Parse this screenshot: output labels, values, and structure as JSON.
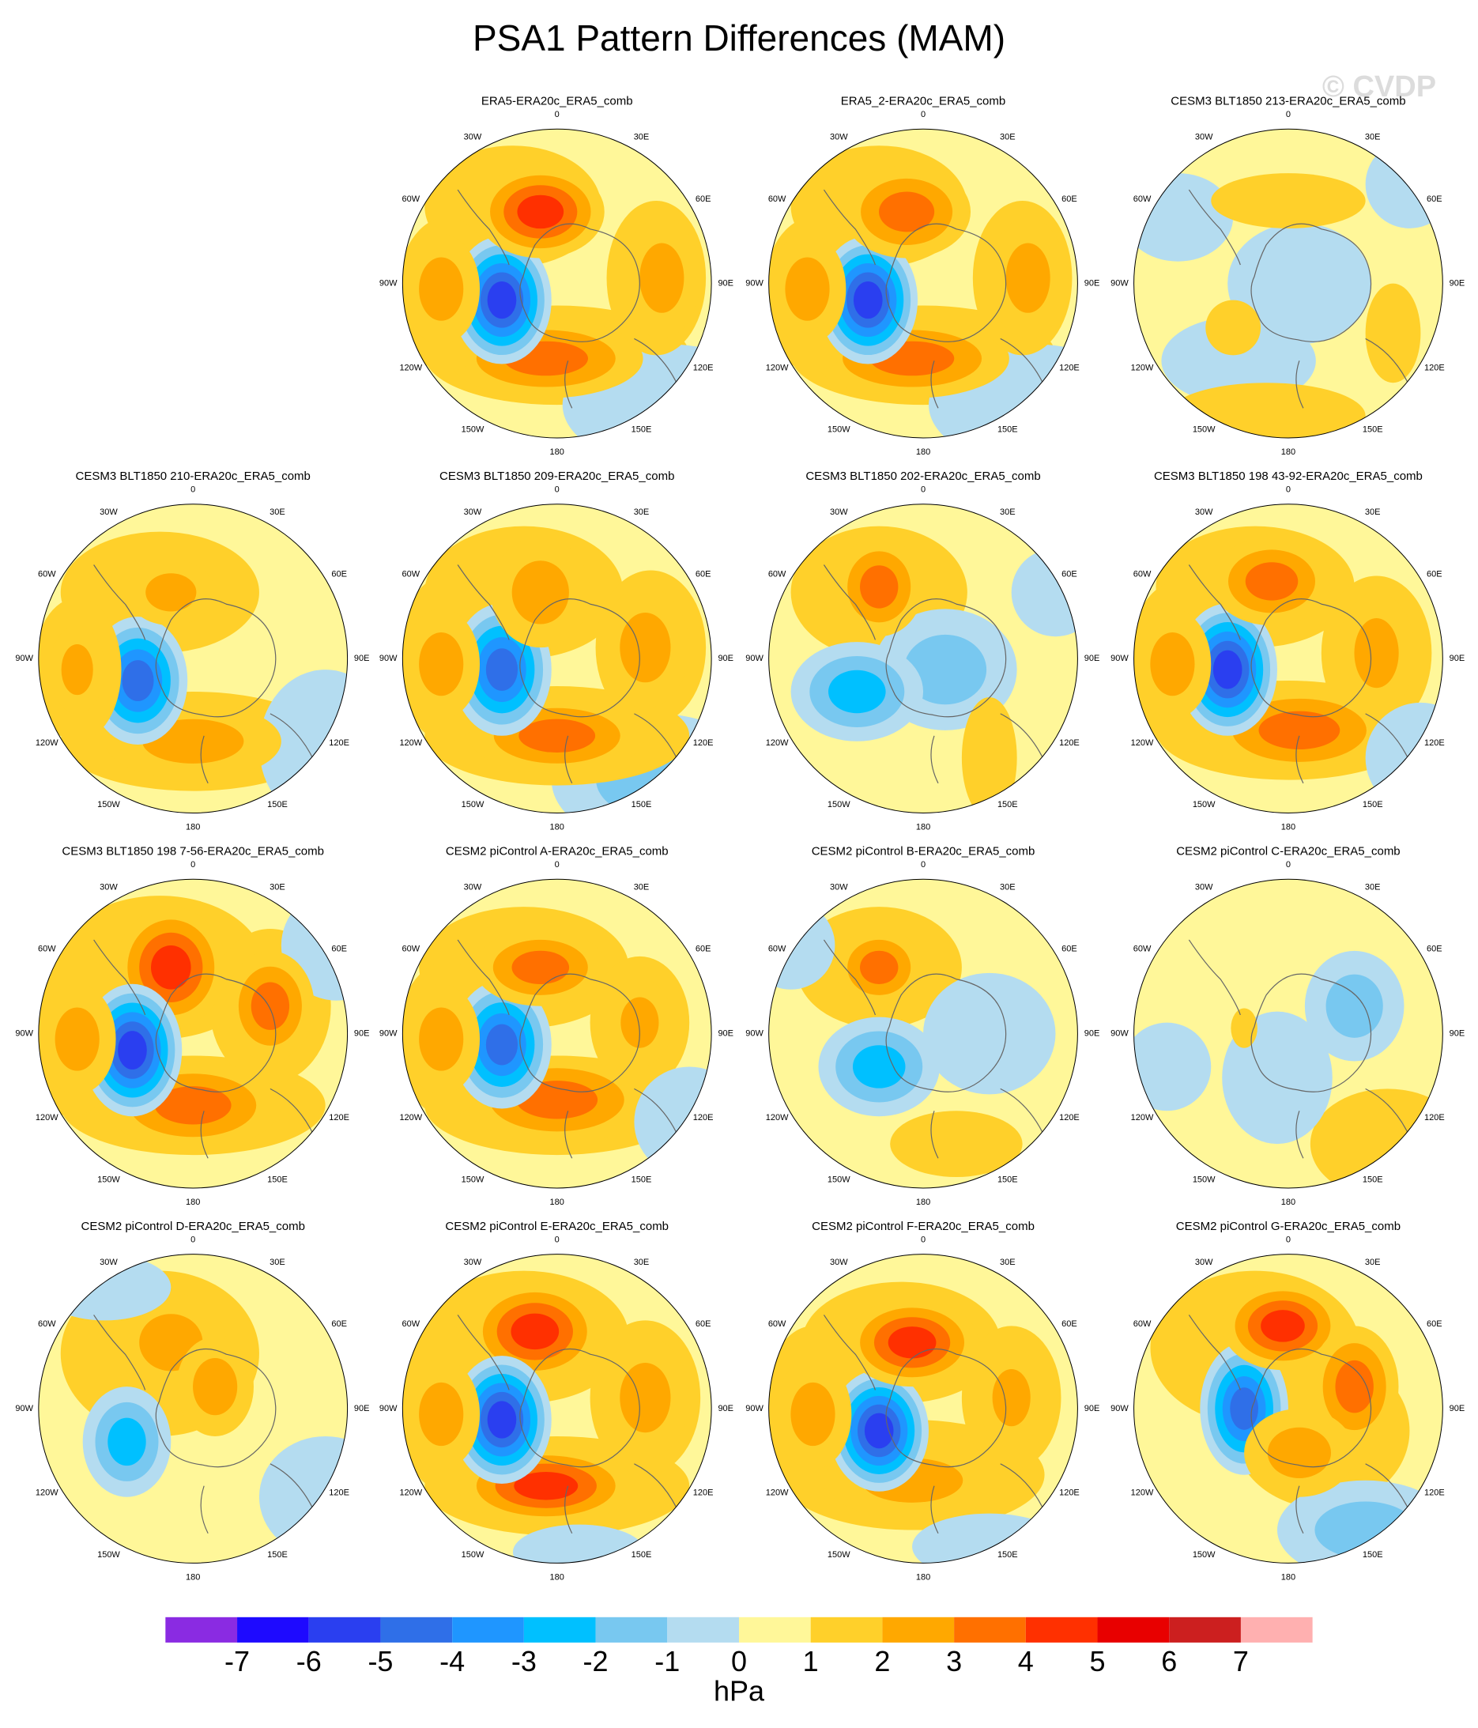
{
  "title": "PSA1 Pattern Differences (MAM)",
  "watermark": "© CVDP",
  "longitude_labels": [
    "0",
    "30E",
    "60E",
    "90E",
    "120E",
    "150E",
    "180",
    "150W",
    "120W",
    "90W",
    "60W",
    "30W"
  ],
  "panels": [
    {
      "title": "ERA5-ERA20c_ERA5_comb"
    },
    {
      "title": "ERA5_2-ERA20c_ERA5_comb"
    },
    {
      "title": "CESM3 BLT1850 213-ERA20c_ERA5_comb"
    },
    {
      "title": "CESM3 BLT1850 210-ERA20c_ERA5_comb"
    },
    {
      "title": "CESM3 BLT1850 209-ERA20c_ERA5_comb"
    },
    {
      "title": "CESM3 BLT1850 202-ERA20c_ERA5_comb"
    },
    {
      "title": "CESM3 BLT1850 198 43-92-ERA20c_ERA5_comb"
    },
    {
      "title": "CESM3 BLT1850 198 7-56-ERA20c_ERA5_comb"
    },
    {
      "title": "CESM2 piControl A-ERA20c_ERA5_comb"
    },
    {
      "title": "CESM2 piControl B-ERA20c_ERA5_comb"
    },
    {
      "title": "CESM2 piControl C-ERA20c_ERA5_comb"
    },
    {
      "title": "CESM2 piControl D-ERA20c_ERA5_comb"
    },
    {
      "title": "CESM2 piControl E-ERA20c_ERA5_comb"
    },
    {
      "title": "CESM2 piControl F-ERA20c_ERA5_comb"
    },
    {
      "title": "CESM2 piControl G-ERA20c_ERA5_comb"
    }
  ],
  "colorbar": {
    "colors": [
      "#8a2be2",
      "#1e0aff",
      "#2a3ff0",
      "#2f6fe8",
      "#1f96ff",
      "#00c0ff",
      "#78c8f0",
      "#b4dcf0",
      "#fff799",
      "#ffd02a",
      "#ffa800",
      "#ff7000",
      "#ff3000",
      "#e80000",
      "#cc1f1f",
      "#ffb0b0"
    ],
    "ticks": [
      -7,
      -6,
      -5,
      -4,
      -3,
      -2,
      -1,
      0,
      1,
      2,
      3,
      4,
      5,
      6,
      7
    ],
    "label": "hPa"
  }
}
